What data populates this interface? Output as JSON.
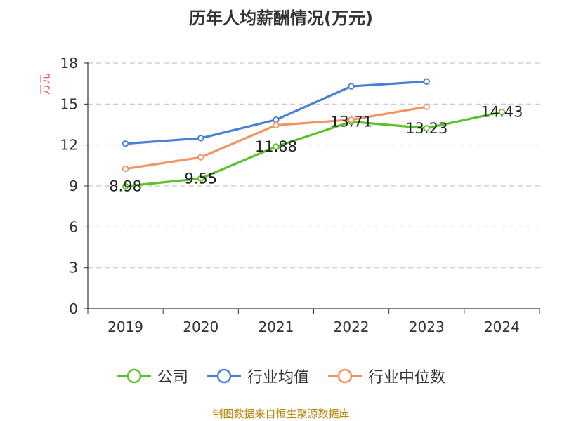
{
  "chart_data": {
    "type": "line",
    "title": "历年人均薪酬情况(万元)",
    "ylabel": "万元",
    "xlabel": "",
    "categories": [
      "2019",
      "2020",
      "2021",
      "2022",
      "2023",
      "2024"
    ],
    "ylim": [
      0,
      18
    ],
    "yticks": [
      0,
      3,
      6,
      9,
      12,
      15,
      18
    ],
    "grid": true,
    "legend_position": "bottom",
    "series": [
      {
        "name": "公司",
        "color": "#5cc22a",
        "values": [
          8.98,
          9.55,
          11.88,
          13.71,
          13.23,
          14.43
        ],
        "labels": [
          "8.98",
          "9.55",
          "11.88",
          "13.71",
          "13.23",
          "14.43"
        ]
      },
      {
        "name": "行业均值",
        "color": "#4a7fd6",
        "values": [
          12.1,
          12.5,
          13.85,
          16.3,
          16.65,
          null
        ]
      },
      {
        "name": "行业中位数",
        "color": "#f39363",
        "values": [
          10.25,
          11.1,
          13.45,
          13.85,
          14.8,
          null
        ]
      }
    ]
  },
  "footer": {
    "source": "制图数据来自恒生聚源数据库"
  }
}
